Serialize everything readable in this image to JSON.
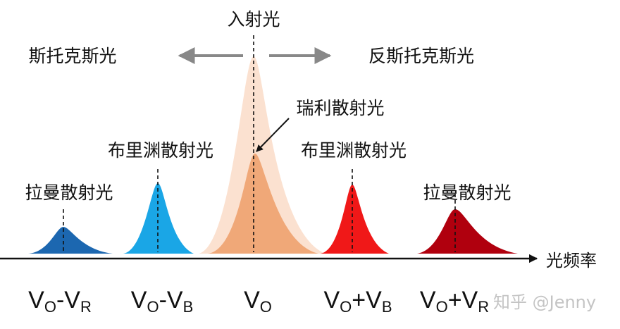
{
  "incident": "入射光",
  "stokes": "斯托克斯光",
  "anti_stokes": "反斯托克斯光",
  "rayleigh": "瑞利散射光",
  "brillouin_left": "布里渊散射光",
  "brillouin_right": "布里渊散射光",
  "raman_left": "拉曼散射光",
  "raman_right": "拉曼散射光",
  "axis_label": "光频率",
  "bottom_labels": [
    [
      "V",
      "O",
      "-V",
      "R"
    ],
    [
      "V",
      "O",
      "-V",
      "B"
    ],
    [
      "V",
      "O"
    ],
    [
      "V",
      "O",
      "+V",
      "B"
    ],
    [
      "V",
      "O",
      "+V",
      "R"
    ]
  ],
  "watermark": "知乎 @Jenny"
}
